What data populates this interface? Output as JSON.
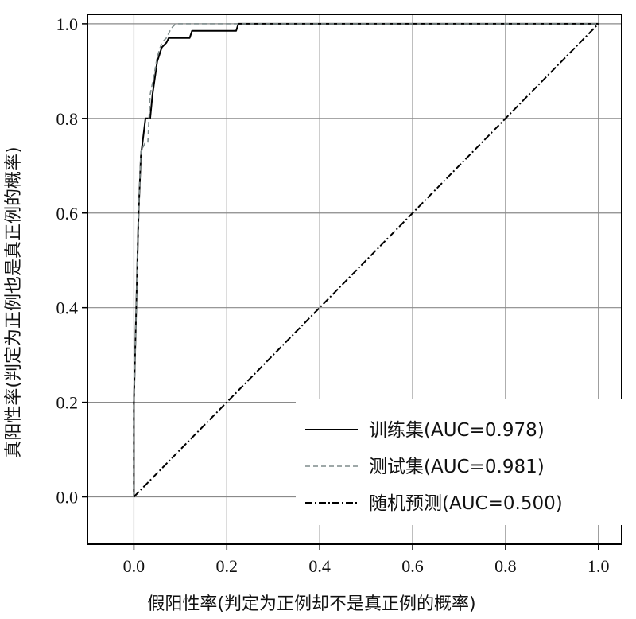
{
  "chart_data": {
    "type": "line",
    "xlabel": "假阳性率(判定为正例却不是真正例的概率)",
    "ylabel": "真阳性率(判定为正例也是真正例的概率)",
    "xlim": [
      -0.1,
      1.05
    ],
    "ylim": [
      -0.1,
      1.02
    ],
    "xticks": [
      "0.0",
      "0.2",
      "0.4",
      "0.6",
      "0.8",
      "1.0"
    ],
    "yticks": [
      "0.0",
      "0.2",
      "0.4",
      "0.6",
      "0.8",
      "1.0"
    ],
    "grid": true,
    "legend_position": "bottom-right",
    "series": [
      {
        "name": "训练集(AUC=0.978)",
        "style": "solid",
        "color": "#000000",
        "points": [
          [
            0,
            0
          ],
          [
            0,
            0.2
          ],
          [
            0.005,
            0.4
          ],
          [
            0.01,
            0.6
          ],
          [
            0.015,
            0.72
          ],
          [
            0.025,
            0.8
          ],
          [
            0.035,
            0.8
          ],
          [
            0.04,
            0.85
          ],
          [
            0.05,
            0.92
          ],
          [
            0.06,
            0.95
          ],
          [
            0.07,
            0.96
          ],
          [
            0.075,
            0.97
          ],
          [
            0.12,
            0.97
          ],
          [
            0.125,
            0.985
          ],
          [
            0.22,
            0.985
          ],
          [
            0.225,
            1.0
          ],
          [
            1.0,
            1.0
          ]
        ]
      },
      {
        "name": "测试集(AUC=0.981)",
        "style": "dashed",
        "color": "#7f8c8c",
        "points": [
          [
            0,
            0
          ],
          [
            0,
            0.2
          ],
          [
            0.005,
            0.4
          ],
          [
            0.01,
            0.6
          ],
          [
            0.015,
            0.73
          ],
          [
            0.025,
            0.75
          ],
          [
            0.03,
            0.75
          ],
          [
            0.035,
            0.85
          ],
          [
            0.045,
            0.9
          ],
          [
            0.05,
            0.93
          ],
          [
            0.06,
            0.96
          ],
          [
            0.07,
            0.97
          ],
          [
            0.08,
            0.99
          ],
          [
            0.09,
            1.0
          ],
          [
            1.0,
            1.0
          ]
        ]
      },
      {
        "name": "随机预测(AUC=0.500)",
        "style": "dashdot",
        "color": "#000000",
        "points": [
          [
            0,
            0
          ],
          [
            1,
            1
          ]
        ]
      }
    ]
  }
}
